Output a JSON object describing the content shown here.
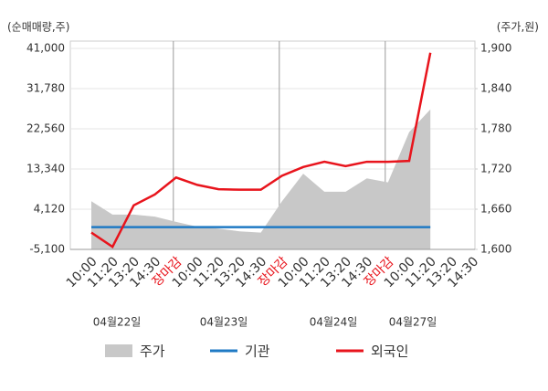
{
  "chart_data": {
    "type": "line",
    "y_unit_label": "(순매매량,주)",
    "y2_unit_label": "(주가,원)",
    "categories": [
      "10:00",
      "11:20",
      "13:20",
      "14:30",
      "장마감",
      "10:00",
      "11:20",
      "13:20",
      "14:30",
      "장마감",
      "10:00",
      "11:20",
      "13:20",
      "14:30",
      "장마감",
      "10:00",
      "11:20",
      "13:20",
      "14:30"
    ],
    "dates": [
      "04월22일",
      "04월23일",
      "04월24일",
      "04월27일"
    ],
    "series": [
      {
        "name": "주가",
        "color": "#c8c8c8",
        "axis": "y2",
        "style": "area",
        "values": [
          1672,
          1652,
          1652,
          1649,
          1641,
          1634,
          1631,
          1627,
          1625,
          1672,
          1713,
          1686,
          1686,
          1706,
          1700,
          1775,
          1809,
          null,
          null
        ]
      },
      {
        "name": "기관",
        "color": "#1f7ac4",
        "values": [
          0,
          0,
          0,
          0,
          0,
          0,
          0,
          0,
          0,
          0,
          0,
          0,
          0,
          0,
          0,
          0,
          0,
          null,
          null
        ]
      },
      {
        "name": "외국인",
        "color": "#e8141c",
        "values": [
          -1240,
          -4500,
          5000,
          7500,
          11400,
          9700,
          8700,
          8600,
          8600,
          11800,
          13800,
          15000,
          14000,
          15000,
          15000,
          15200,
          40000,
          null,
          null
        ]
      }
    ],
    "ylim": [
      -5100,
      41000
    ],
    "yticks": [
      {
        "value": -5100,
        "label": "-5,100"
      },
      {
        "value": 4120,
        "label": "4,120"
      },
      {
        "value": 13340,
        "label": "13,340"
      },
      {
        "value": 22560,
        "label": "22,560"
      },
      {
        "value": 31780,
        "label": "31,780"
      },
      {
        "value": 41000,
        "label": "41,000"
      }
    ],
    "y2lim": [
      1600,
      1900
    ],
    "y2ticks": [
      {
        "value": 1600,
        "label": "1,600"
      },
      {
        "value": 1660,
        "label": "1,660"
      },
      {
        "value": 1720,
        "label": "1,720"
      },
      {
        "value": 1780,
        "label": "1,780"
      },
      {
        "value": 1840,
        "label": "1,840"
      },
      {
        "value": 1900,
        "label": "1,900"
      }
    ],
    "grid": true
  }
}
